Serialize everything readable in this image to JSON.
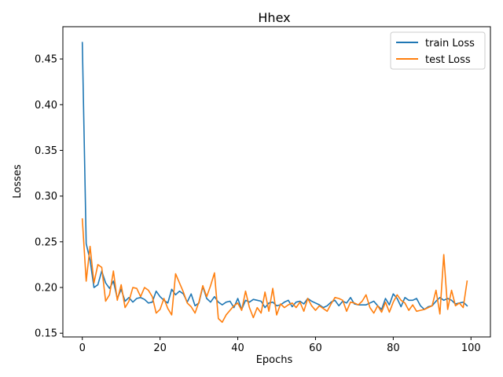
{
  "chart_data": {
    "type": "line",
    "title": "Hhex",
    "xlabel": "Epochs",
    "ylabel": "Losses",
    "xlim": [
      -5,
      105
    ],
    "ylim": [
      0.1459,
      0.4853
    ],
    "xticks": [
      0,
      20,
      40,
      60,
      80,
      100
    ],
    "yticks": [
      0.15,
      0.2,
      0.25,
      0.3,
      0.35,
      0.4,
      0.45
    ],
    "ytick_labels": [
      "0.15",
      "0.20",
      "0.25",
      "0.30",
      "0.35",
      "0.40",
      "0.45"
    ],
    "xtick_labels": [
      "0",
      "20",
      "40",
      "60",
      "80",
      "100"
    ],
    "grid": false,
    "legend_position": "top-right",
    "series": [
      {
        "name": "train Loss",
        "color": "#1f77b4",
        "values": [
          0.468,
          0.248,
          0.23,
          0.2,
          0.203,
          0.218,
          0.205,
          0.199,
          0.207,
          0.188,
          0.198,
          0.185,
          0.189,
          0.184,
          0.188,
          0.189,
          0.187,
          0.183,
          0.184,
          0.196,
          0.19,
          0.186,
          0.183,
          0.198,
          0.192,
          0.196,
          0.193,
          0.184,
          0.193,
          0.18,
          0.183,
          0.201,
          0.188,
          0.184,
          0.19,
          0.184,
          0.181,
          0.184,
          0.185,
          0.178,
          0.188,
          0.176,
          0.186,
          0.184,
          0.187,
          0.186,
          0.185,
          0.178,
          0.183,
          0.184,
          0.18,
          0.181,
          0.184,
          0.186,
          0.179,
          0.184,
          0.185,
          0.182,
          0.188,
          0.185,
          0.183,
          0.181,
          0.178,
          0.18,
          0.184,
          0.186,
          0.18,
          0.185,
          0.183,
          0.189,
          0.182,
          0.181,
          0.181,
          0.181,
          0.183,
          0.185,
          0.18,
          0.176,
          0.188,
          0.181,
          0.193,
          0.188,
          0.179,
          0.189,
          0.186,
          0.186,
          0.188,
          0.18,
          0.176,
          0.179,
          0.18,
          0.185,
          0.189,
          0.186,
          0.188,
          0.186,
          0.182,
          0.183,
          0.184,
          0.18
        ]
      },
      {
        "name": "test Loss",
        "color": "#ff7f0e",
        "values": [
          0.275,
          0.207,
          0.245,
          0.205,
          0.225,
          0.222,
          0.185,
          0.192,
          0.218,
          0.186,
          0.203,
          0.178,
          0.185,
          0.2,
          0.199,
          0.19,
          0.2,
          0.197,
          0.19,
          0.172,
          0.176,
          0.188,
          0.177,
          0.17,
          0.215,
          0.205,
          0.195,
          0.183,
          0.179,
          0.172,
          0.184,
          0.202,
          0.19,
          0.202,
          0.216,
          0.166,
          0.162,
          0.17,
          0.175,
          0.18,
          0.183,
          0.175,
          0.196,
          0.178,
          0.167,
          0.178,
          0.172,
          0.195,
          0.174,
          0.199,
          0.17,
          0.182,
          0.178,
          0.181,
          0.183,
          0.178,
          0.184,
          0.174,
          0.188,
          0.18,
          0.175,
          0.18,
          0.177,
          0.174,
          0.182,
          0.189,
          0.188,
          0.186,
          0.174,
          0.184,
          0.183,
          0.181,
          0.185,
          0.192,
          0.178,
          0.172,
          0.18,
          0.173,
          0.184,
          0.173,
          0.184,
          0.192,
          0.186,
          0.183,
          0.175,
          0.181,
          0.174,
          0.175,
          0.176,
          0.178,
          0.18,
          0.197,
          0.171,
          0.236,
          0.176,
          0.197,
          0.18,
          0.183,
          0.178,
          0.207
        ]
      }
    ]
  }
}
